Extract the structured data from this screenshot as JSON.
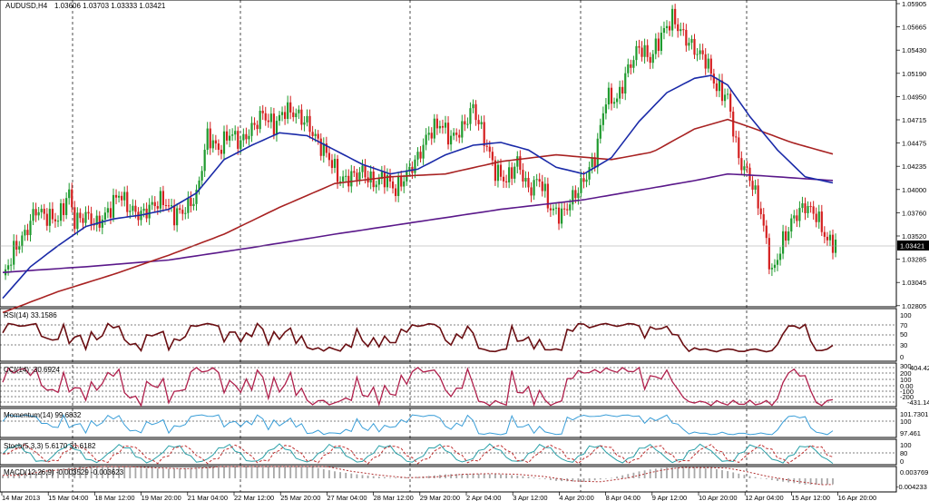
{
  "header": {
    "symbol": "AUDUSD,H4",
    "ohlc": "1.03606 1.03703 1.03333 1.03421"
  },
  "colors": {
    "bull": "#1f9a2e",
    "bear": "#d41f1f",
    "ma_fast": "#1a2aa8",
    "ma_mid": "#a82222",
    "ma_slow": "#5a188a",
    "rsi": "#6a0e12",
    "cci": "#b0204c",
    "momentum": "#3a9ed8",
    "stoch_main": "#2aa0a8",
    "stoch_signal": "#c03030",
    "macd_hist": "#a8a8a8",
    "macd_signal": "#b03030"
  },
  "price_axis": {
    "ticks": [
      "1.05905",
      "1.05665",
      "1.05430",
      "1.05190",
      "1.04950",
      "1.04715",
      "1.04475",
      "1.04235",
      "1.04000",
      "1.03760",
      "1.03520",
      "1.03285",
      "1.03045",
      "1.02805"
    ],
    "current": "1.03421"
  },
  "time_axis": {
    "labels": [
      "14 Mar 2013",
      "15 Mar 04:00",
      "18 Mar 12:00",
      "19 Mar 20:00",
      "21 Mar 04:00",
      "22 Mar 12:00",
      "25 Mar 20:00",
      "27 Mar 04:00",
      "28 Mar 12:00",
      "29 Mar 20:00",
      "2 Apr 04:00",
      "3 Apr 12:00",
      "4 Apr 20:00",
      "8 Apr 04:00",
      "9 Apr 12:00",
      "10 Apr 20:00",
      "12 Apr 04:00",
      "15 Apr 12:00",
      "16 Apr 20:00"
    ]
  },
  "indicators": {
    "rsi": {
      "label": "RSI(14) 33.1586",
      "levels": [
        "100",
        "70",
        "50",
        "30",
        "0"
      ]
    },
    "cci": {
      "label": "CCI(14) -30.6924",
      "levels": [
        "300",
        "200",
        "100",
        "0.00",
        "-100",
        "-200",
        "-300"
      ],
      "max": "404.4223",
      "min": "-431.1404"
    },
    "momentum": {
      "label": "Momentum(14) 99.6832",
      "max": "101.7301",
      "ref": "100",
      "min": "97.461"
    },
    "stoch": {
      "label": "Stoch(5,3,3) 5.6170 31.6182",
      "max": "100",
      "mid": "80",
      "min": "0"
    },
    "macd": {
      "label": "MACD(12,26,9) -0.003529 -0.003623",
      "max": "0.003769",
      "min": "-0.004233"
    }
  },
  "chart_data": {
    "type": "candlestick",
    "title": "AUDUSD,H4",
    "ylim": [
      1.0278,
      1.0595
    ],
    "grid": "vertical dashed",
    "x_labels": [
      "14 Mar 2013",
      "15 Mar 04:00",
      "18 Mar 12:00",
      "19 Mar 20:00",
      "21 Mar 04:00",
      "22 Mar 12:00",
      "25 Mar 20:00",
      "27 Mar 04:00",
      "28 Mar 12:00",
      "29 Mar 20:00",
      "2 Apr 04:00",
      "3 Apr 12:00",
      "4 Apr 20:00",
      "8 Apr 04:00",
      "9 Apr 12:00",
      "10 Apr 20:00",
      "12 Apr 04:00",
      "15 Apr 12:00",
      "16 Apr 20:00"
    ],
    "close_path": [
      [
        0,
        1.0305
      ],
      [
        4,
        1.0335
      ],
      [
        8,
        1.0352
      ],
      [
        12,
        1.0378
      ],
      [
        16,
        1.037
      ],
      [
        20,
        1.0368
      ],
      [
        24,
        1.0395
      ],
      [
        26,
        1.0365
      ],
      [
        30,
        1.0372
      ],
      [
        34,
        1.0362
      ],
      [
        38,
        1.0375
      ],
      [
        42,
        1.0395
      ],
      [
        46,
        1.0378
      ],
      [
        50,
        1.0372
      ],
      [
        54,
        1.0382
      ],
      [
        58,
        1.0388
      ],
      [
        62,
        1.0372
      ],
      [
        66,
        1.0378
      ],
      [
        70,
        1.0392
      ],
      [
        74,
        1.0455
      ],
      [
        78,
        1.044
      ],
      [
        82,
        1.0458
      ],
      [
        86,
        1.0448
      ],
      [
        90,
        1.0462
      ],
      [
        94,
        1.0478
      ],
      [
        98,
        1.0465
      ],
      [
        102,
        1.0482
      ],
      [
        106,
        1.0478
      ],
      [
        110,
        1.0468
      ],
      [
        114,
        1.0448
      ],
      [
        118,
        1.0432
      ],
      [
        122,
        1.0408
      ],
      [
        126,
        1.0412
      ],
      [
        130,
        1.0418
      ],
      [
        134,
        1.0405
      ],
      [
        138,
        1.0412
      ],
      [
        142,
        1.0398
      ],
      [
        146,
        1.0415
      ],
      [
        150,
        1.0432
      ],
      [
        154,
        1.0458
      ],
      [
        158,
        1.0468
      ],
      [
        162,
        1.0452
      ],
      [
        166,
        1.0462
      ],
      [
        170,
        1.0485
      ],
      [
        174,
        1.0452
      ],
      [
        178,
        1.0418
      ],
      [
        182,
        1.0408
      ],
      [
        186,
        1.0428
      ],
      [
        190,
        1.0398
      ],
      [
        194,
        1.041
      ],
      [
        198,
        1.0378
      ],
      [
        202,
        1.0372
      ],
      [
        206,
        1.039
      ],
      [
        210,
        1.0408
      ],
      [
        214,
        1.0432
      ],
      [
        218,
        1.0495
      ],
      [
        222,
        1.0492
      ],
      [
        226,
        1.0525
      ],
      [
        230,
        1.0548
      ],
      [
        234,
        1.0535
      ],
      [
        238,
        1.056
      ],
      [
        242,
        1.0578
      ],
      [
        246,
        1.056
      ],
      [
        250,
        1.0545
      ],
      [
        254,
        1.0535
      ],
      [
        258,
        1.0505
      ],
      [
        262,
        1.0495
      ],
      [
        266,
        1.043
      ],
      [
        270,
        1.0412
      ],
      [
        274,
        1.0375
      ],
      [
        278,
        1.031
      ],
      [
        282,
        1.0345
      ],
      [
        286,
        1.037
      ],
      [
        290,
        1.0382
      ],
      [
        294,
        1.0372
      ],
      [
        298,
        1.0345
      ],
      [
        301,
        1.0342
      ]
    ],
    "ma_fast": [
      [
        0,
        1.0285
      ],
      [
        10,
        1.0318
      ],
      [
        20,
        1.034
      ],
      [
        30,
        1.036
      ],
      [
        40,
        1.0368
      ],
      [
        50,
        1.0372
      ],
      [
        60,
        1.0378
      ],
      [
        70,
        1.0395
      ],
      [
        80,
        1.043
      ],
      [
        90,
        1.0445
      ],
      [
        100,
        1.0458
      ],
      [
        110,
        1.0455
      ],
      [
        120,
        1.044
      ],
      [
        130,
        1.0425
      ],
      [
        140,
        1.0415
      ],
      [
        150,
        1.042
      ],
      [
        160,
        1.0435
      ],
      [
        170,
        1.0445
      ],
      [
        180,
        1.0448
      ],
      [
        190,
        1.044
      ],
      [
        200,
        1.0422
      ],
      [
        210,
        1.0415
      ],
      [
        220,
        1.0432
      ],
      [
        230,
        1.047
      ],
      [
        240,
        1.05
      ],
      [
        250,
        1.0515
      ],
      [
        256,
        1.0518
      ],
      [
        262,
        1.0508
      ],
      [
        270,
        1.0475
      ],
      [
        280,
        1.044
      ],
      [
        290,
        1.0412
      ],
      [
        301,
        1.0405
      ]
    ],
    "ma_mid": [
      [
        0,
        1.027
      ],
      [
        20,
        1.0292
      ],
      [
        40,
        1.031
      ],
      [
        60,
        1.033
      ],
      [
        80,
        1.0352
      ],
      [
        100,
        1.038
      ],
      [
        120,
        1.0405
      ],
      [
        140,
        1.0412
      ],
      [
        160,
        1.0415
      ],
      [
        180,
        1.0428
      ],
      [
        200,
        1.0435
      ],
      [
        220,
        1.043
      ],
      [
        235,
        1.0438
      ],
      [
        250,
        1.0462
      ],
      [
        262,
        1.0472
      ],
      [
        272,
        1.0462
      ],
      [
        285,
        1.0448
      ],
      [
        301,
        1.0435
      ]
    ],
    "ma_slow": [
      [
        0,
        1.0312
      ],
      [
        30,
        1.0318
      ],
      [
        60,
        1.0325
      ],
      [
        90,
        1.0338
      ],
      [
        120,
        1.0352
      ],
      [
        150,
        1.0365
      ],
      [
        180,
        1.0378
      ],
      [
        210,
        1.0388
      ],
      [
        230,
        1.0398
      ],
      [
        250,
        1.0408
      ],
      [
        262,
        1.0415
      ],
      [
        275,
        1.0413
      ],
      [
        290,
        1.041
      ],
      [
        301,
        1.0408
      ]
    ]
  }
}
